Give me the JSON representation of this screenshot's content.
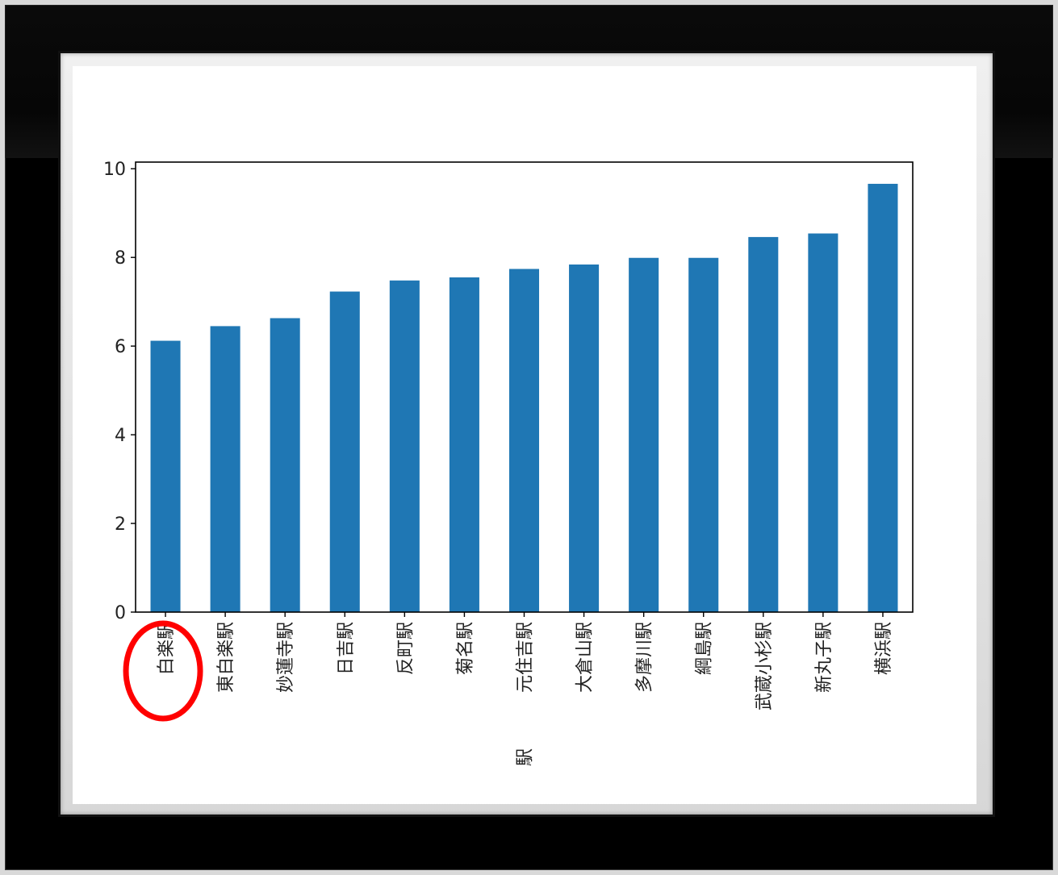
{
  "chart_data": {
    "type": "bar",
    "title": "",
    "xlabel": "駅",
    "ylabel": "",
    "ylim": [
      0,
      10.15
    ],
    "yticks": [
      0,
      2,
      4,
      6,
      8,
      10
    ],
    "categories": [
      "白楽駅",
      "東白楽駅",
      "妙蓮寺駅",
      "日吉駅",
      "反町駅",
      "菊名駅",
      "元住吉駅",
      "大倉山駅",
      "多摩川駅",
      "綱島駅",
      "武蔵小杉駅",
      "新丸子駅",
      "横浜駅"
    ],
    "values": [
      6.12,
      6.45,
      6.63,
      7.23,
      7.48,
      7.55,
      7.74,
      7.84,
      7.99,
      7.99,
      8.46,
      8.54,
      9.66
    ],
    "bar_color": "#1f77b4",
    "grid": false,
    "legend": "none",
    "highlight": {
      "category": "白楽駅",
      "shape": "ellipse",
      "color": "#ff0000"
    }
  }
}
